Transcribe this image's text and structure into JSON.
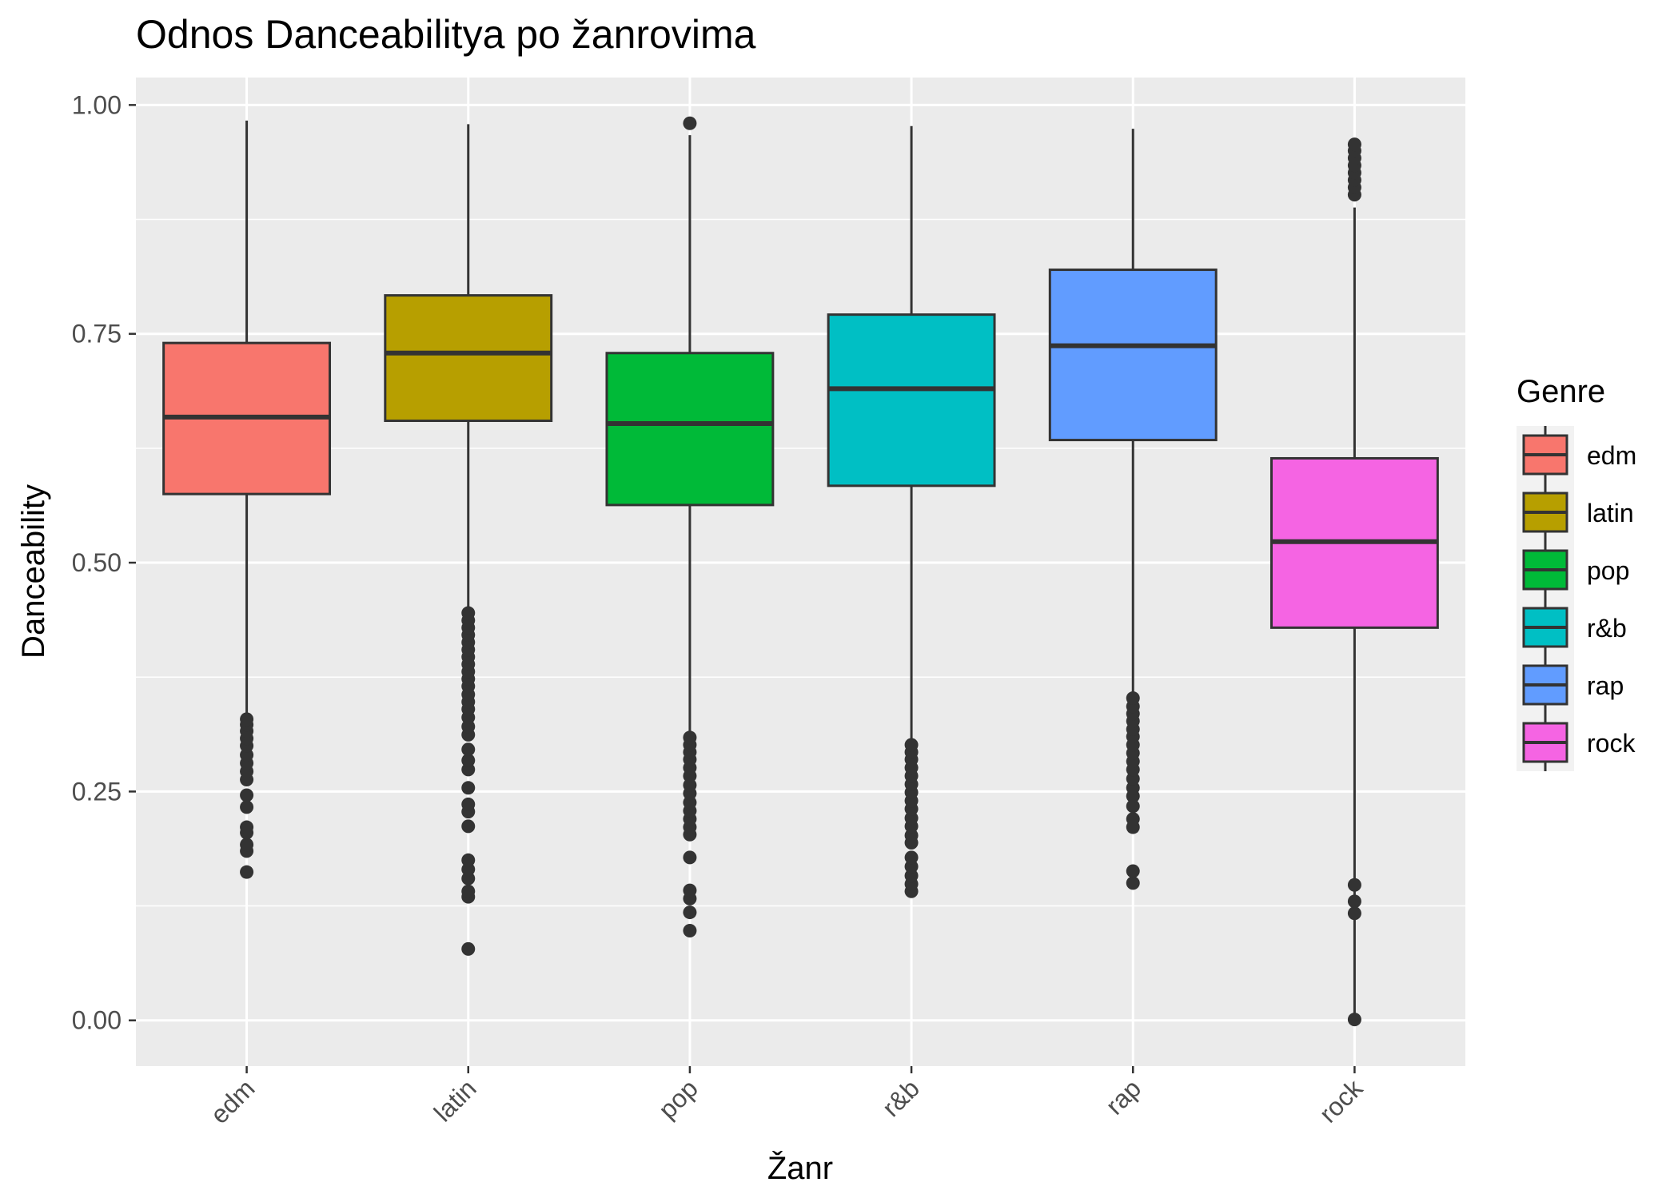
{
  "chart_data": {
    "type": "boxplot",
    "title": "Odnos Danceabilitya po žanrovima",
    "xlabel": "Žanr",
    "ylabel": "Danceability",
    "ylim": [
      -0.05,
      1.03
    ],
    "yticks": [
      0.0,
      0.25,
      0.5,
      0.75,
      1.0
    ],
    "ytick_labels": [
      "0.00",
      "0.25",
      "0.50",
      "0.75",
      "1.00"
    ],
    "categories": [
      "edm",
      "latin",
      "pop",
      "r&b",
      "rap",
      "rock"
    ],
    "grid": true,
    "legend": {
      "title": "Genre",
      "position": "right"
    },
    "colors": [
      "#F8766D",
      "#B79F00",
      "#00BA38",
      "#00BFC4",
      "#619CFF",
      "#F564E3"
    ],
    "boxes": [
      {
        "category": "edm",
        "whisker_low": 0.331,
        "q1": 0.575,
        "median": 0.659,
        "q3": 0.74,
        "whisker_high": 0.983,
        "outliers": [
          0.162,
          0.185,
          0.192,
          0.205,
          0.211,
          0.233,
          0.246,
          0.263,
          0.272,
          0.281,
          0.29,
          0.3,
          0.308,
          0.316,
          0.323,
          0.329
        ]
      },
      {
        "category": "latin",
        "whisker_low": 0.448,
        "q1": 0.655,
        "median": 0.729,
        "q3": 0.792,
        "whisker_high": 0.979,
        "outliers": [
          0.078,
          0.135,
          0.141,
          0.155,
          0.165,
          0.175,
          0.212,
          0.228,
          0.236,
          0.254,
          0.274,
          0.284,
          0.296,
          0.312,
          0.321,
          0.331,
          0.34,
          0.348,
          0.356,
          0.365,
          0.373,
          0.381,
          0.389,
          0.397,
          0.405,
          0.413,
          0.421,
          0.429,
          0.437,
          0.445
        ]
      },
      {
        "category": "pop",
        "whisker_low": 0.315,
        "q1": 0.563,
        "median": 0.652,
        "q3": 0.729,
        "whisker_high": 0.967,
        "outliers": [
          0.098,
          0.118,
          0.133,
          0.142,
          0.178,
          0.203,
          0.211,
          0.22,
          0.229,
          0.238,
          0.248,
          0.257,
          0.267,
          0.276,
          0.285,
          0.293,
          0.301,
          0.309,
          0.98
        ]
      },
      {
        "category": "r&b",
        "whisker_low": 0.305,
        "q1": 0.584,
        "median": 0.69,
        "q3": 0.771,
        "whisker_high": 0.977,
        "outliers": [
          0.141,
          0.149,
          0.158,
          0.168,
          0.178,
          0.194,
          0.202,
          0.212,
          0.221,
          0.231,
          0.24,
          0.249,
          0.258,
          0.267,
          0.276,
          0.285,
          0.293,
          0.301
        ]
      },
      {
        "category": "rap",
        "whisker_low": 0.357,
        "q1": 0.634,
        "median": 0.737,
        "q3": 0.82,
        "whisker_high": 0.974,
        "outliers": [
          0.15,
          0.163,
          0.211,
          0.22,
          0.234,
          0.245,
          0.254,
          0.264,
          0.274,
          0.283,
          0.292,
          0.301,
          0.31,
          0.318,
          0.327,
          0.335,
          0.343,
          0.352
        ]
      },
      {
        "category": "rock",
        "whisker_low": 0.0,
        "q1": 0.429,
        "median": 0.523,
        "q3": 0.614,
        "whisker_high": 0.888,
        "outliers": [
          0.001,
          0.117,
          0.13,
          0.148,
          0.902,
          0.91,
          0.918,
          0.926,
          0.934,
          0.942,
          0.95,
          0.957
        ]
      }
    ]
  }
}
